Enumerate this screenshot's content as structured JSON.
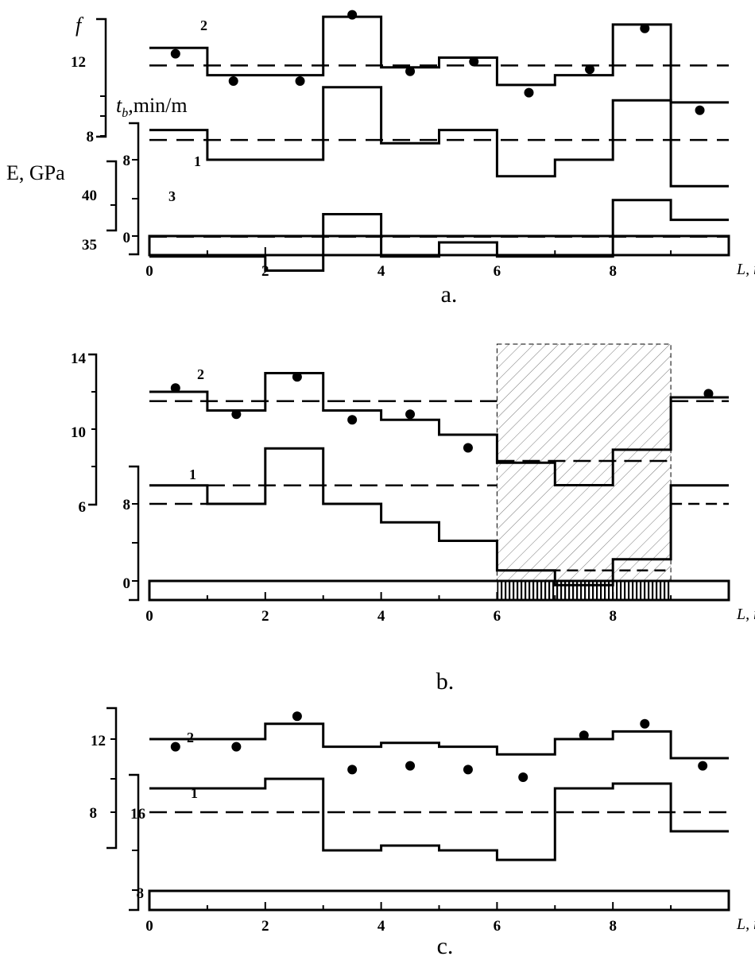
{
  "chart_data": [
    {
      "type": "line",
      "panel": "a",
      "caption": "a.",
      "xlabel": "L, m",
      "x_ticks": [
        "0",
        "2",
        "4",
        "6",
        "8"
      ],
      "xlim": [
        0,
        10
      ],
      "axes": [
        {
          "name": "f",
          "ticks": [
            "12",
            "8"
          ]
        },
        {
          "name_base": "t",
          "name_sub": "b",
          "name_rest": ",min/m",
          "ticks": [
            "8",
            "0"
          ]
        },
        {
          "name": "E, GPa",
          "ticks": [
            "40",
            "35"
          ]
        }
      ],
      "series": [
        {
          "label": "2",
          "x_edges": [
            0,
            1,
            3,
            4,
            5,
            6,
            7,
            8,
            9,
            10
          ],
          "levels": [
            12.6,
            11.2,
            14.2,
            11.6,
            12.1,
            10.7,
            11.2,
            13.8,
            9.8
          ],
          "mean": 11.7,
          "points": [
            [
              0.45,
              12.3
            ],
            [
              1.45,
              10.9
            ],
            [
              2.6,
              10.9
            ],
            [
              3.5,
              14.3
            ],
            [
              4.5,
              11.4
            ],
            [
              5.6,
              11.9
            ],
            [
              6.55,
              10.3
            ],
            [
              7.6,
              11.5
            ],
            [
              8.55,
              13.6
            ],
            [
              9.5,
              9.4
            ]
          ]
        },
        {
          "label": "1",
          "x_edges": [
            0,
            1,
            3,
            4,
            5,
            6,
            7,
            8,
            9,
            10
          ],
          "levels": [
            8.9,
            8.0,
            10.2,
            8.5,
            8.9,
            7.5,
            8.0,
            9.8,
            7.2
          ],
          "mean": 8.6
        },
        {
          "label": "3",
          "x_edges": [
            0,
            2,
            3,
            4,
            5,
            6,
            8,
            9,
            10
          ],
          "levels": [
            37.5,
            37.0,
            39.0,
            37.5,
            38.0,
            37.5,
            39.5,
            38.8
          ],
          "mean": 38.2
        }
      ]
    },
    {
      "type": "line",
      "panel": "b",
      "caption": "b.",
      "xlabel": "L, m",
      "x_ticks": [
        "0",
        "2",
        "4",
        "6",
        "8"
      ],
      "xlim": [
        0,
        10
      ],
      "axes": [
        {
          "ticks": [
            "14",
            "10",
            "6"
          ]
        },
        {
          "ticks": [
            "8",
            "0"
          ]
        }
      ],
      "hatched_region": [
        6,
        9
      ],
      "series": [
        {
          "label": "2",
          "x_edges": [
            0,
            1,
            2,
            3,
            4,
            5,
            6,
            7,
            8,
            9,
            10
          ],
          "levels": [
            12.0,
            11.0,
            13.0,
            11.0,
            10.5,
            9.7,
            8.2,
            7.0,
            8.9,
            11.7
          ],
          "mean": 11.5,
          "mean_hatched": 8.3,
          "points": [
            [
              0.45,
              12.2
            ],
            [
              1.5,
              10.8
            ],
            [
              2.55,
              12.8
            ],
            [
              3.5,
              10.5
            ],
            [
              4.5,
              10.8
            ],
            [
              5.5,
              9.0
            ],
            [
              9.65,
              11.9
            ]
          ]
        },
        {
          "label": "1",
          "x_edges": [
            0,
            1,
            2,
            3,
            4,
            5,
            6,
            7,
            8,
            9,
            10
          ],
          "levels": [
            8.5,
            8.0,
            9.5,
            8.0,
            7.5,
            7.0,
            6.2,
            5.8,
            6.5,
            8.5
          ],
          "mean_left": 8.5,
          "mean_right": 8.0,
          "mean_hatched": 6.2
        }
      ]
    },
    {
      "type": "line",
      "panel": "c",
      "caption": "c.",
      "xlabel": "L, m",
      "x_ticks": [
        "0",
        "2",
        "4",
        "6",
        "8"
      ],
      "xlim": [
        0,
        10
      ],
      "axes": [
        {
          "ticks": [
            "12",
            "8"
          ]
        },
        {
          "ticks": [
            "16",
            "8"
          ]
        }
      ],
      "series": [
        {
          "label": "2",
          "x_edges": [
            0,
            2,
            3,
            4,
            5,
            6,
            7,
            8,
            9,
            10
          ],
          "levels": [
            12.0,
            12.4,
            11.8,
            11.9,
            11.8,
            11.6,
            12.0,
            12.2,
            11.5
          ],
          "points": [
            [
              0.45,
              11.8
            ],
            [
              1.5,
              11.8
            ],
            [
              2.55,
              12.6
            ],
            [
              3.5,
              11.2
            ],
            [
              4.5,
              11.3
            ],
            [
              5.5,
              11.2
            ],
            [
              6.45,
              11.0
            ],
            [
              7.5,
              12.1
            ],
            [
              8.55,
              12.4
            ],
            [
              9.55,
              11.3
            ]
          ]
        },
        {
          "label": "1",
          "x_edges": [
            0,
            2,
            3,
            4,
            5,
            6,
            7,
            8,
            9,
            10
          ],
          "levels": [
            18.5,
            19.5,
            12.0,
            12.5,
            12.0,
            11.0,
            18.5,
            19.0,
            14.0
          ],
          "mean": 16.0
        }
      ]
    }
  ]
}
